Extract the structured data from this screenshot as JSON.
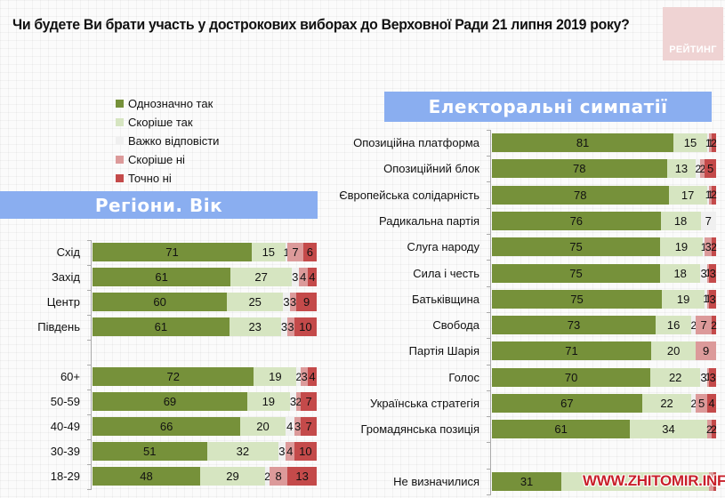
{
  "title": "Чи будете Ви брати участь у дострокових виборах до Верховної Ради 21 липня 2019 року?",
  "logo_text": "РЕЙТИНГ",
  "watermark": "WWW.ZHITOMIR.INFO",
  "colors": {
    "definitely_yes": "#76913a",
    "rather_yes": "#d6e5c1",
    "hard_to_say": "#f0f0f0",
    "rather_no": "#dc9a9a",
    "definitely_no": "#c44a4a",
    "band": "#8aaef0"
  },
  "chart_data": [
    {
      "type": "bar",
      "orientation": "horizontal",
      "stacked": true,
      "title": "Регіони. Вік",
      "legend": [
        "Однозначно так",
        "Скоріше  так",
        "Важко відповісти",
        "Скоріше  ні",
        "Точно ні"
      ],
      "legend_position": "top-left",
      "xlim": [
        0,
        100
      ],
      "categories": [
        "Схід",
        "Захід",
        "Центр",
        "Південь",
        "",
        "60+",
        "50-59",
        "40-49",
        "30-39",
        "18-29"
      ],
      "series": [
        {
          "name": "Однозначно так",
          "values": [
            71,
            61,
            60,
            61,
            null,
            72,
            69,
            66,
            51,
            48
          ]
        },
        {
          "name": "Скоріше  так",
          "values": [
            15,
            27,
            25,
            23,
            null,
            19,
            19,
            20,
            32,
            29
          ]
        },
        {
          "name": "Важко відповісти",
          "values": [
            1,
            3,
            3,
            3,
            null,
            2,
            3,
            4,
            3,
            2
          ]
        },
        {
          "name": "Скоріше  ні",
          "values": [
            7,
            4,
            3,
            3,
            null,
            3,
            2,
            3,
            4,
            8
          ]
        },
        {
          "name": "Точно ні",
          "values": [
            6,
            4,
            9,
            10,
            null,
            4,
            7,
            7,
            10,
            13
          ]
        }
      ]
    },
    {
      "type": "bar",
      "orientation": "horizontal",
      "stacked": true,
      "title": "Електоральні симпатії",
      "xlim": [
        0,
        100
      ],
      "categories": [
        "Опозиційна платформа",
        "Опозиційний блок",
        "Європейська солідарність",
        "Радикальна партія",
        "Слуга народу",
        "Сила і честь",
        "Батьківщина",
        "Свобода",
        "Партія Шарія",
        "Голос",
        "Українська стратегія",
        "Громадянська позиція",
        "",
        "Не визначилися"
      ],
      "series": [
        {
          "name": "Однозначно так",
          "values": [
            81,
            78,
            78,
            76,
            75,
            75,
            75,
            73,
            71,
            70,
            67,
            61,
            null,
            31
          ]
        },
        {
          "name": "Скоріше  так",
          "values": [
            15,
            13,
            17,
            18,
            19,
            18,
            19,
            16,
            20,
            22,
            22,
            34,
            null,
            66
          ]
        },
        {
          "name": "Важко відповісти",
          "values": [
            1,
            2,
            1,
            7,
            1,
            3,
            1,
            2,
            0,
            3,
            2,
            0,
            null,
            0
          ]
        },
        {
          "name": "Скоріше  ні",
          "values": [
            1,
            2,
            1,
            0,
            3,
            1,
            1,
            7,
            9,
            1,
            5,
            2,
            null,
            2
          ]
        },
        {
          "name": "Точно ні",
          "values": [
            2,
            5,
            2,
            0,
            2,
            3,
            3,
            2,
            0,
            3,
            4,
            2,
            null,
            1
          ]
        }
      ]
    }
  ]
}
